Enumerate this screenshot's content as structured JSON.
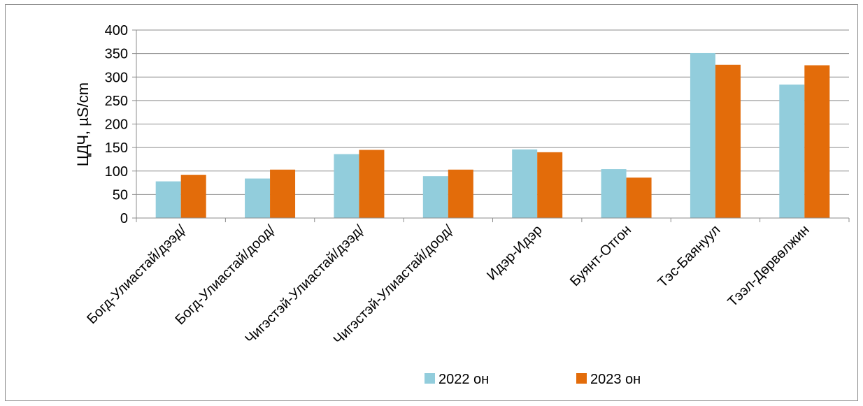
{
  "chart_data": {
    "type": "bar",
    "title": "",
    "xlabel": "",
    "ylabel": "ЦДЧ, µS/cm",
    "ylim": [
      0,
      400
    ],
    "yticks": [
      0,
      50,
      100,
      150,
      200,
      250,
      300,
      350,
      400
    ],
    "grid": true,
    "legend_position": "bottom",
    "categories": [
      "Богд-Улиастай/дээд/",
      "Богд-Улиастай/доод/",
      "Чигэстэй-Улиастай/дээд/",
      "Чигэстэй-Улиастай/доод/",
      "Идэр-Идэр",
      "Буянт-Отгон",
      "Тэс-Баянуул",
      "Тээл-Дөрвөлжин"
    ],
    "series": [
      {
        "name": "2022 он",
        "color": "#92cddc",
        "values": [
          78,
          84,
          136,
          89,
          146,
          104,
          351,
          284
        ]
      },
      {
        "name": "2023 он",
        "color": "#e36c0a",
        "values": [
          92,
          103,
          145,
          103,
          140,
          86,
          326,
          325
        ]
      }
    ]
  }
}
